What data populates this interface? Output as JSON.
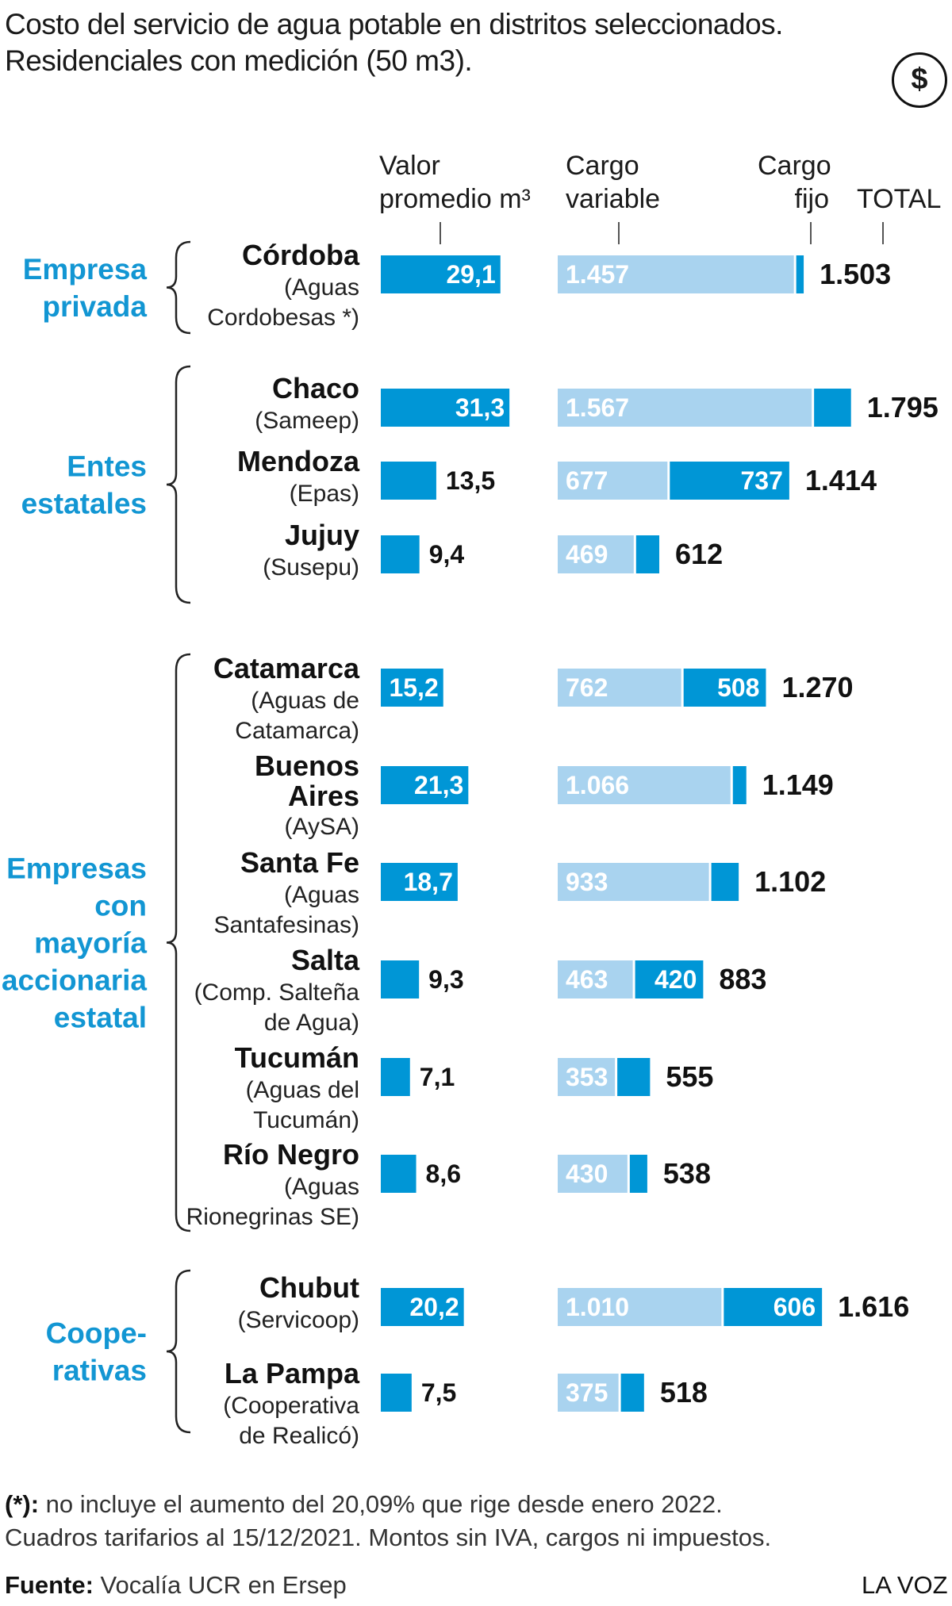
{
  "title_line1": "Costo del servicio de agua potable en distritos seleccionados.",
  "title_line2": "Residenciales con medición (50 m3).",
  "currency_symbol": "$",
  "col_headers": {
    "valor_1": "Valor",
    "valor_2": "promedio m³",
    "variable_1": "Cargo",
    "variable_2": "variable",
    "fijo_1": "Cargo",
    "fijo_2": "fijo",
    "total": "TOTAL"
  },
  "colors": {
    "dark_blue": "#0096d6",
    "light_blue": "#a9d3ef",
    "group_label": "#1296d3"
  },
  "chart_data": {
    "type": "bar",
    "series": [
      {
        "name": "Valor promedio m³"
      },
      {
        "name": "Cargo variable"
      },
      {
        "name": "Cargo fijo"
      },
      {
        "name": "TOTAL"
      }
    ],
    "groups": [
      {
        "label": [
          "Empresa",
          "privada"
        ],
        "rows": [
          {
            "name": "Córdoba",
            "sub": [
              "(Aguas",
              "Cordobesas *)"
            ],
            "avg": 29.1,
            "avg_label": "29,1",
            "var": 1457,
            "var_label": "1.457",
            "fix": 46,
            "fix_label": "",
            "total": 1503,
            "total_label": "1.503"
          }
        ]
      },
      {
        "label": [
          "Entes",
          "estatales"
        ],
        "rows": [
          {
            "name": "Chaco",
            "sub": [
              "(Sameep)"
            ],
            "avg": 31.3,
            "avg_label": "31,3",
            "var": 1567,
            "var_label": "1.567",
            "fix": 228,
            "fix_label": "",
            "total": 1795,
            "total_label": "1.795"
          },
          {
            "name": "Mendoza",
            "sub": [
              "(Epas)"
            ],
            "avg": 13.5,
            "avg_label": "13,5",
            "var": 677,
            "var_label": "677",
            "fix": 737,
            "fix_label": "737",
            "total": 1414,
            "total_label": "1.414"
          },
          {
            "name": "Jujuy",
            "sub": [
              "(Susepu)"
            ],
            "avg": 9.4,
            "avg_label": "9,4",
            "var": 469,
            "var_label": "469",
            "fix": 143,
            "fix_label": "",
            "total": 612,
            "total_label": "612"
          }
        ]
      },
      {
        "label": [
          "Empresas",
          "con",
          "mayoría",
          "accionaria",
          "estatal"
        ],
        "rows": [
          {
            "name": "Catamarca",
            "sub": [
              "(Aguas de",
              "Catamarca)"
            ],
            "avg": 15.2,
            "avg_label": "15,2",
            "var": 762,
            "var_label": "762",
            "fix": 508,
            "fix_label": "508",
            "total": 1270,
            "total_label": "1.270"
          },
          {
            "name": "Buenos",
            "name2": "Aires",
            "sub": [
              "(AySA)"
            ],
            "avg": 21.3,
            "avg_label": "21,3",
            "var": 1066,
            "var_label": "1.066",
            "fix": 83,
            "fix_label": "",
            "total": 1149,
            "total_label": "1.149"
          },
          {
            "name": "Santa Fe",
            "sub": [
              "(Aguas",
              "Santafesinas)"
            ],
            "avg": 18.7,
            "avg_label": "18,7",
            "var": 933,
            "var_label": "933",
            "fix": 169,
            "fix_label": "",
            "total": 1102,
            "total_label": "1.102"
          },
          {
            "name": "Salta",
            "sub": [
              "(Comp. Salteña",
              "de Agua)"
            ],
            "avg": 9.3,
            "avg_label": "9,3",
            "var": 463,
            "var_label": "463",
            "fix": 420,
            "fix_label": "420",
            "total": 883,
            "total_label": "883"
          },
          {
            "name": "Tucumán",
            "sub": [
              "(Aguas del",
              "Tucumán)"
            ],
            "avg": 7.1,
            "avg_label": "7,1",
            "var": 353,
            "var_label": "353",
            "fix": 202,
            "fix_label": "",
            "total": 555,
            "total_label": "555"
          },
          {
            "name": "Río Negro",
            "sub": [
              "(Aguas",
              "Rionegrinas SE)"
            ],
            "avg": 8.6,
            "avg_label": "8,6",
            "var": 430,
            "var_label": "430",
            "fix": 108,
            "fix_label": "",
            "total": 538,
            "total_label": "538"
          }
        ]
      },
      {
        "label": [
          "Coope-",
          "rativas"
        ],
        "rows": [
          {
            "name": "Chubut",
            "sub": [
              "(Servicoop)"
            ],
            "avg": 20.2,
            "avg_label": "20,2",
            "var": 1010,
            "var_label": "1.010",
            "fix": 606,
            "fix_label": "606",
            "total": 1616,
            "total_label": "1.616"
          },
          {
            "name": "La Pampa",
            "sub": [
              "(Cooperativa",
              "de Realicó)"
            ],
            "avg": 7.5,
            "avg_label": "7,5",
            "var": 375,
            "var_label": "375",
            "fix": 143,
            "fix_label": "",
            "total": 518,
            "total_label": "518"
          }
        ]
      }
    ]
  },
  "footnote_marker": "(*):",
  "footnote_text": " no incluye el aumento del 20,09% que rige desde enero 2022.",
  "footnote_line2": "Cuadros tarifarios al 15/12/2021. Montos sin IVA, cargos ni impuestos.",
  "source_label": "Fuente:",
  "source_text": " Vocalía UCR en Ersep",
  "brand": "LA VOZ"
}
